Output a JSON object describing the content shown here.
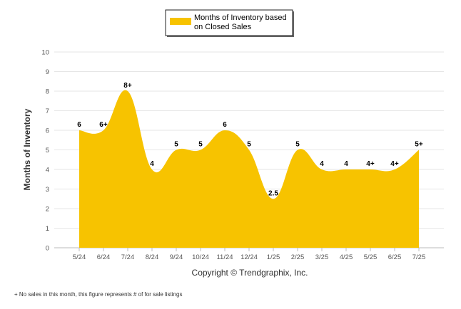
{
  "chart_data": {
    "type": "area",
    "categories": [
      "5/24",
      "6/24",
      "7/24",
      "8/24",
      "9/24",
      "10/24",
      "11/24",
      "12/24",
      "1/25",
      "2/25",
      "3/25",
      "4/25",
      "5/25",
      "6/25",
      "7/25"
    ],
    "series": [
      {
        "name": "Months of Inventory based on Closed Sales",
        "values": [
          6,
          6,
          8,
          4,
          5,
          5,
          6,
          5,
          2.5,
          5,
          4,
          4,
          4,
          4,
          5
        ],
        "labels": [
          "6",
          "6+",
          "8+",
          "4",
          "5",
          "5",
          "6",
          "5",
          "2.5",
          "5",
          "4",
          "4",
          "4+",
          "4+",
          "5+"
        ]
      }
    ],
    "ylabel": "Months of Inventory",
    "xlabel": "",
    "ylim": [
      0,
      10
    ],
    "yticks": [
      "0",
      "1",
      "2",
      "3",
      "4",
      "5",
      "6",
      "7",
      "8",
      "9",
      "10"
    ],
    "grid": true,
    "legend_position": "top-center",
    "color": "#F7C300"
  },
  "legend": {
    "line1": "Months of Inventory based",
    "line2": "on Closed Sales"
  },
  "copyright": "Copyright © Trendgraphix, Inc.",
  "footnote": "+ No sales in this month, this figure represents # of for sale listings"
}
